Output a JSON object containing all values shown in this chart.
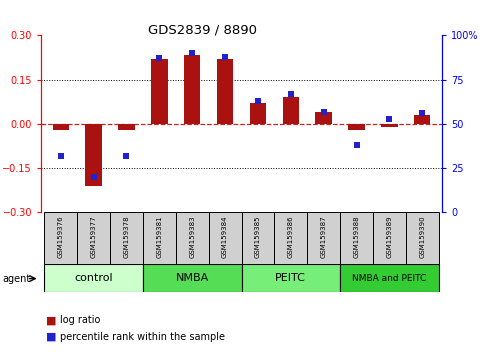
{
  "title": "GDS2839 / 8890",
  "samples": [
    "GSM159376",
    "GSM159377",
    "GSM159378",
    "GSM159381",
    "GSM159383",
    "GSM159384",
    "GSM159385",
    "GSM159386",
    "GSM159387",
    "GSM159388",
    "GSM159389",
    "GSM159390"
  ],
  "log_ratio": [
    -0.02,
    -0.21,
    -0.02,
    0.22,
    0.235,
    0.22,
    0.07,
    0.09,
    0.04,
    -0.02,
    -0.01,
    0.03
  ],
  "percentile": [
    32,
    20,
    32,
    87,
    90,
    88,
    63,
    67,
    57,
    38,
    53,
    56
  ],
  "groups": [
    {
      "label": "control",
      "start": 0,
      "end": 3,
      "color": "#ccffcc"
    },
    {
      "label": "NMBA",
      "start": 3,
      "end": 6,
      "color": "#55dd55"
    },
    {
      "label": "PEITC",
      "start": 6,
      "end": 9,
      "color": "#77ee77"
    },
    {
      "label": "NMBA and PEITC",
      "start": 9,
      "end": 12,
      "color": "#33cc33"
    }
  ],
  "ylim_left": [
    -0.3,
    0.3
  ],
  "ylim_right": [
    0,
    100
  ],
  "yticks_left": [
    -0.3,
    -0.15,
    0,
    0.15,
    0.3
  ],
  "yticks_right": [
    0,
    25,
    50,
    75,
    100
  ],
  "bar_color": "#aa1111",
  "dot_color": "#2222cc",
  "zero_line_color": "#cc2222",
  "legend_log_ratio": "log ratio",
  "legend_percentile": "percentile rank within the sample",
  "sample_box_color": "#d0d0d0"
}
